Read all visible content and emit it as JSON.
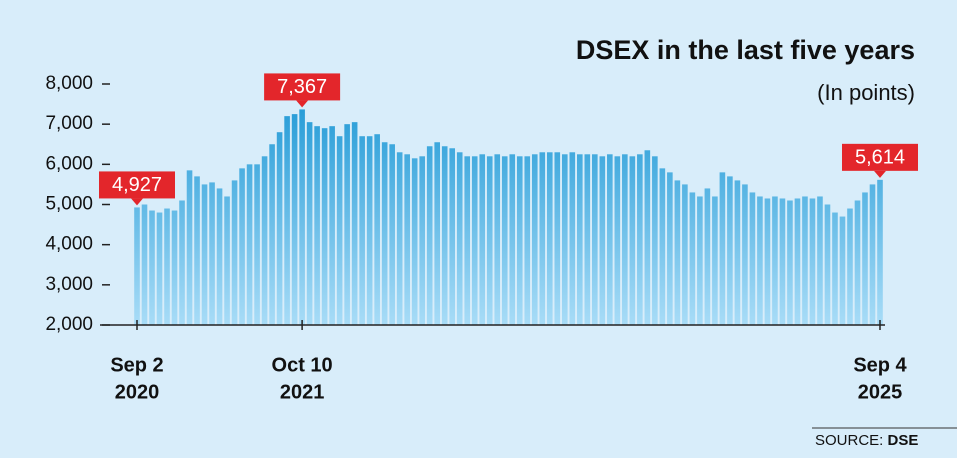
{
  "chart_data": {
    "type": "bar",
    "title": "DSEX in the last five years",
    "subtitle": "(In points)",
    "source_label": "SOURCE:",
    "source": "DSE",
    "categories": [
      [
        "Sep 2",
        "2020"
      ],
      null,
      null,
      null,
      null,
      null,
      null,
      null,
      null,
      null,
      null,
      null,
      null,
      null,
      null,
      null,
      null,
      null,
      null,
      null,
      null,
      null,
      [
        "Oct 10",
        "2021"
      ],
      null,
      null,
      null,
      null,
      null,
      null,
      null,
      null,
      null,
      null,
      null,
      null,
      null,
      null,
      null,
      null,
      null,
      null,
      null,
      null,
      null,
      null,
      null,
      null,
      null,
      null,
      null,
      null,
      null,
      null,
      null,
      null,
      null,
      null,
      null,
      null,
      null,
      null,
      null,
      null,
      null,
      null,
      null,
      null,
      null,
      null,
      null,
      null,
      null,
      null,
      null,
      null,
      null,
      null,
      null,
      null,
      null,
      null,
      null,
      null,
      null,
      null,
      null,
      null,
      null,
      null,
      null,
      null,
      null,
      null,
      null,
      null,
      null,
      null,
      null,
      null,
      [
        "Sep 4",
        "2025"
      ]
    ],
    "values": [
      4927,
      5000,
      4850,
      4800,
      4900,
      4850,
      5100,
      5850,
      5700,
      5500,
      5550,
      5400,
      5200,
      5600,
      5900,
      6000,
      6000,
      6200,
      6500,
      6800,
      7200,
      7250,
      7367,
      7050,
      6950,
      6900,
      6950,
      6700,
      7000,
      7050,
      6700,
      6700,
      6750,
      6550,
      6500,
      6300,
      6250,
      6150,
      6200,
      6450,
      6550,
      6450,
      6400,
      6300,
      6200,
      6200,
      6250,
      6200,
      6250,
      6200,
      6250,
      6200,
      6200,
      6250,
      6300,
      6300,
      6300,
      6250,
      6300,
      6250,
      6250,
      6250,
      6200,
      6250,
      6200,
      6250,
      6200,
      6250,
      6350,
      6200,
      5900,
      5800,
      5600,
      5500,
      5300,
      5200,
      5400,
      5200,
      5800,
      5700,
      5600,
      5500,
      5300,
      5200,
      5150,
      5200,
      5150,
      5100,
      5150,
      5200,
      5150,
      5200,
      5000,
      4800,
      4700,
      4900,
      5100,
      5300,
      5500,
      5614
    ],
    "value_labels": [
      "4,927",
      null,
      null,
      null,
      null,
      null,
      null,
      null,
      null,
      null,
      null,
      null,
      null,
      null,
      null,
      null,
      null,
      null,
      null,
      null,
      null,
      null,
      "7,367",
      null,
      null,
      null,
      null,
      null,
      null,
      null,
      null,
      null,
      null,
      null,
      null,
      null,
      null,
      null,
      null,
      null,
      null,
      null,
      null,
      null,
      null,
      null,
      null,
      null,
      null,
      null,
      null,
      null,
      null,
      null,
      null,
      null,
      null,
      null,
      null,
      null,
      null,
      null,
      null,
      null,
      null,
      null,
      null,
      null,
      null,
      null,
      null,
      null,
      null,
      null,
      null,
      null,
      null,
      null,
      null,
      null,
      null,
      null,
      null,
      null,
      null,
      null,
      null,
      null,
      null,
      null,
      null,
      null,
      null,
      null,
      null,
      null,
      null,
      null,
      null,
      "5,614"
    ],
    "color": "#1a96d4",
    "label_color": "#e3262b",
    "ylim": [
      2000,
      8000
    ],
    "yticks": [
      {
        "value": 2000,
        "label": "2,000"
      },
      {
        "value": 3000,
        "label": "3,000"
      },
      {
        "value": 4000,
        "label": "4,000"
      },
      {
        "value": 5000,
        "label": "5,000"
      },
      {
        "value": 6000,
        "label": "6,000"
      },
      {
        "value": 7000,
        "label": "7,000"
      },
      {
        "value": 8000,
        "label": "8,000"
      }
    ]
  }
}
